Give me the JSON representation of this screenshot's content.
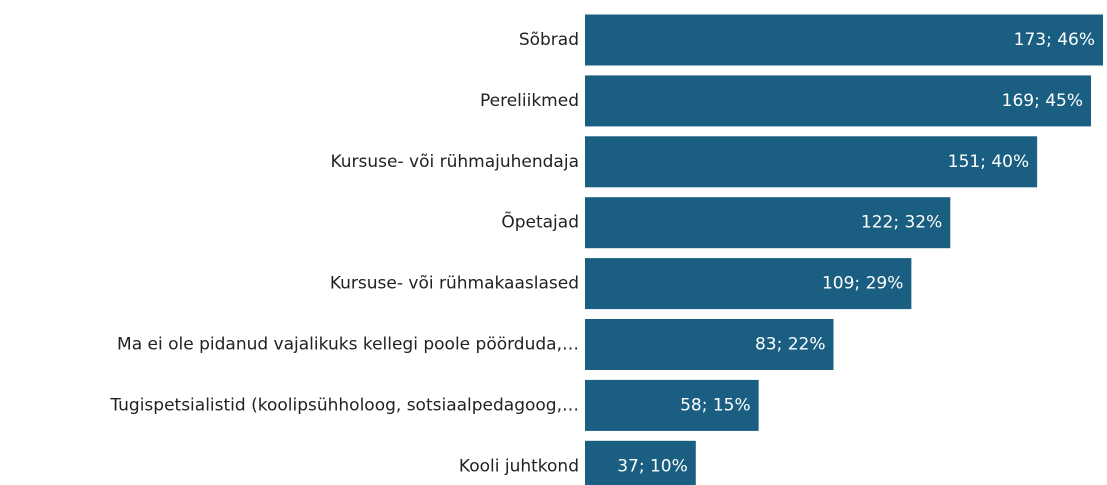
{
  "chart_data": {
    "type": "bar",
    "orientation": "horizontal",
    "categories": [
      "Sõbrad",
      "Pereliikmed",
      "Kursuse- või rühmajuhendaja",
      "Õpetajad",
      "Kursuse- või rühmakaaslased",
      "Ma ei ole pidanud vajalikuks kellegi poole pöörduda,…",
      "Tugispetsialistid (koolipsühholoog, sotsiaalpedagoog,…",
      "Kooli juhtkond"
    ],
    "values": [
      173,
      169,
      151,
      122,
      109,
      83,
      58,
      37
    ],
    "value_labels": [
      "173; 46%",
      "169; 45%",
      "151; 40%",
      "122; 32%",
      "109; 29%",
      "83; 22%",
      "58; 15%",
      "37; 10%"
    ],
    "color": "#1a5f82"
  }
}
